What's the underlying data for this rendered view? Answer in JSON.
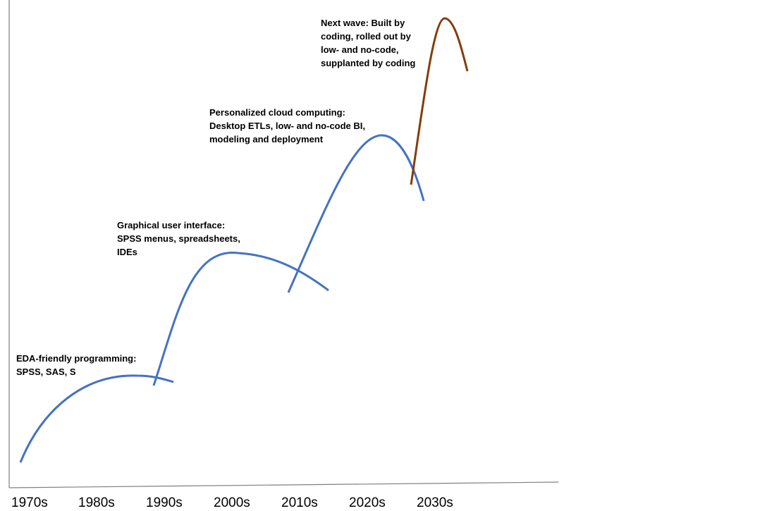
{
  "annotations": [
    {
      "lines": [
        "EDA-friendly programming:",
        "SPSS, SAS, S"
      ]
    },
    {
      "lines": [
        "Graphical user interface:",
        "SPSS menus, spreadsheets,",
        "IDEs"
      ]
    },
    {
      "lines": [
        "Personalized cloud computing:",
        "Desktop ETLs, low- and no-code BI,",
        "modeling and deployment"
      ]
    },
    {
      "lines": [
        "Next wave: Built by",
        "coding, rolled out by",
        "low- and no-code,",
        "supplanted by coding"
      ]
    }
  ],
  "x_ticks": [
    "1970s",
    "1980s",
    "1990s",
    "2000s",
    "2010s",
    "2020s",
    "2030s"
  ],
  "colors": {
    "wave": "#4472c4",
    "next_wave": "#843c0c",
    "axis": "#7f7f7f"
  }
}
